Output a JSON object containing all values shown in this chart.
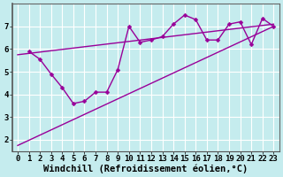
{
  "title": "",
  "xlabel": "Windchill (Refroidissement éolien,°C)",
  "bg_color": "#c5ecee",
  "grid_color": "#ffffff",
  "line_color": "#990099",
  "xlim": [
    -0.5,
    23.5
  ],
  "ylim": [
    1.5,
    8.0
  ],
  "xticks": [
    0,
    1,
    2,
    3,
    4,
    5,
    6,
    7,
    8,
    9,
    10,
    11,
    12,
    13,
    14,
    15,
    16,
    17,
    18,
    19,
    20,
    21,
    22,
    23
  ],
  "yticks": [
    2,
    3,
    4,
    5,
    6,
    7
  ],
  "jagged_x": [
    1,
    2,
    3,
    4,
    5,
    6,
    7,
    8,
    9,
    10,
    11,
    12,
    13,
    14,
    15,
    16,
    17,
    18,
    19,
    20,
    21,
    22,
    23
  ],
  "jagged_y": [
    5.9,
    5.55,
    4.9,
    4.3,
    3.6,
    3.7,
    4.1,
    4.1,
    5.1,
    7.0,
    6.3,
    6.4,
    6.55,
    7.1,
    7.5,
    7.3,
    6.4,
    6.4,
    7.1,
    7.2,
    6.2,
    7.35,
    7.0
  ],
  "line1_x": [
    0,
    23
  ],
  "line1_y": [
    5.75,
    7.1
  ],
  "line2_x": [
    0,
    23
  ],
  "line2_y": [
    1.75,
    7.0
  ],
  "tick_fontsize": 6.5,
  "xlabel_fontsize": 7.5,
  "marker_size": 2.5,
  "line_width": 1.0,
  "spine_color": "#666666"
}
